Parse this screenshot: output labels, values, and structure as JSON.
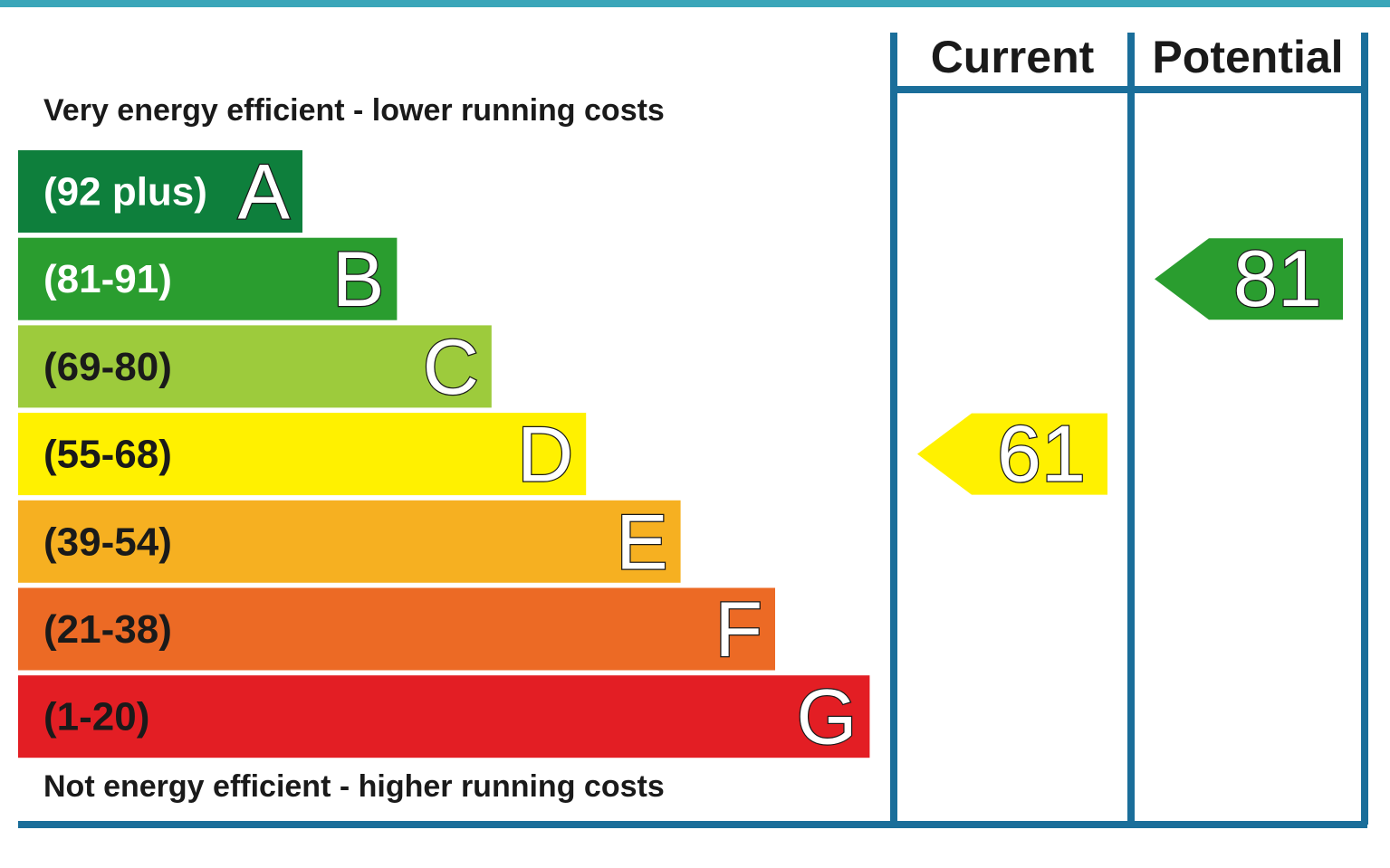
{
  "chart_data": {
    "type": "bar",
    "top_label": "Very energy efficient - lower running costs",
    "bottom_label": "Not energy efficient - higher running costs",
    "columns": {
      "current": "Current",
      "potential": "Potential"
    },
    "bands": [
      {
        "letter": "A",
        "range": "(92 plus)",
        "min": 92,
        "max": 100,
        "color": "#0e7f3c",
        "label_color": "#ffffff"
      },
      {
        "letter": "B",
        "range": "(81-91)",
        "min": 81,
        "max": 91,
        "color": "#2a9d2f",
        "label_color": "#ffffff"
      },
      {
        "letter": "C",
        "range": "(69-80)",
        "min": 69,
        "max": 80,
        "color": "#9dcb3c",
        "label_color": "#1a1a1a"
      },
      {
        "letter": "D",
        "range": "(55-68)",
        "min": 55,
        "max": 68,
        "color": "#fff100",
        "label_color": "#1a1a1a"
      },
      {
        "letter": "E",
        "range": "(39-54)",
        "min": 39,
        "max": 54,
        "color": "#f6b021",
        "label_color": "#1a1a1a"
      },
      {
        "letter": "F",
        "range": "(21-38)",
        "min": 21,
        "max": 38,
        "color": "#ec6a25",
        "label_color": "#1a1a1a"
      },
      {
        "letter": "G",
        "range": "(1-20)",
        "min": 1,
        "max": 20,
        "color": "#e31e24",
        "label_color": "#1a1a1a"
      }
    ],
    "current": {
      "value": 61,
      "band": "D"
    },
    "potential": {
      "value": 81,
      "band": "B"
    }
  },
  "colors": {
    "frame": "#1a6e9a",
    "top_rule": "#3aa6b9"
  }
}
